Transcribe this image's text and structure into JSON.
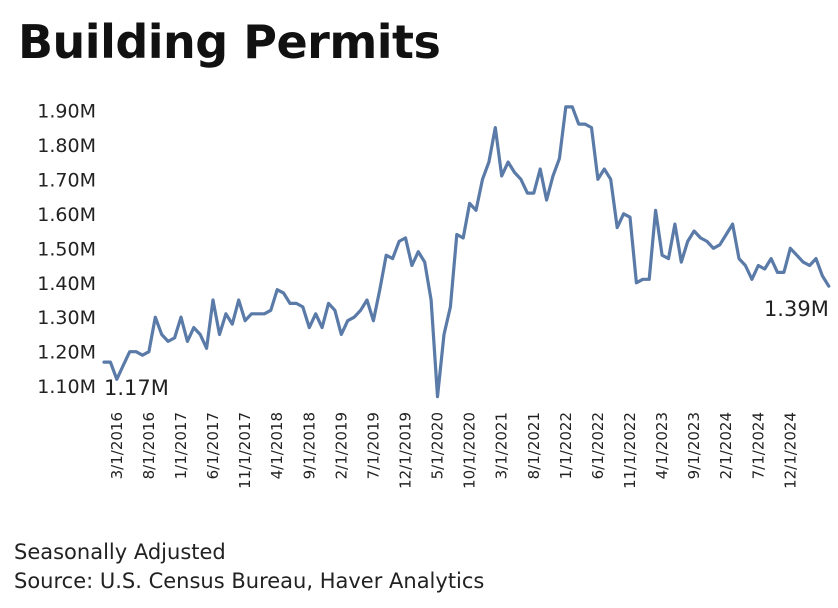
{
  "chart_data": {
    "type": "line",
    "title": "Building Permits",
    "series_color": "#5a7aa8",
    "y_ticks": [
      "1.10M",
      "1.20M",
      "1.30M",
      "1.40M",
      "1.50M",
      "1.60M",
      "1.70M",
      "1.80M",
      "1.90M"
    ],
    "y_tick_values": [
      1.1,
      1.2,
      1.3,
      1.4,
      1.5,
      1.6,
      1.7,
      1.8,
      1.9
    ],
    "ylim": [
      1.06,
      1.93
    ],
    "x_ticks": [
      "3/1/2016",
      "8/1/2016",
      "1/1/2017",
      "6/1/2017",
      "11/1/2017",
      "4/1/2018",
      "9/1/2018",
      "2/1/2019",
      "7/1/2019",
      "12/1/2019",
      "5/1/2020",
      "10/1/2020",
      "3/1/2021",
      "8/1/2021",
      "1/1/2022",
      "6/1/2022",
      "11/1/2022",
      "4/1/2023",
      "9/1/2023",
      "2/1/2024",
      "7/1/2024",
      "12/1/2024"
    ],
    "x_start": "1/1/2016",
    "x_end": "4/1/2025",
    "values": [
      1.17,
      1.17,
      1.12,
      1.16,
      1.2,
      1.2,
      1.19,
      1.2,
      1.3,
      1.25,
      1.23,
      1.24,
      1.3,
      1.23,
      1.27,
      1.25,
      1.21,
      1.35,
      1.25,
      1.31,
      1.28,
      1.35,
      1.29,
      1.31,
      1.31,
      1.31,
      1.32,
      1.38,
      1.37,
      1.34,
      1.34,
      1.33,
      1.27,
      1.31,
      1.27,
      1.34,
      1.32,
      1.25,
      1.29,
      1.3,
      1.32,
      1.35,
      1.29,
      1.38,
      1.48,
      1.47,
      1.52,
      1.53,
      1.45,
      1.49,
      1.46,
      1.35,
      1.07,
      1.25,
      1.33,
      1.54,
      1.53,
      1.63,
      1.61,
      1.7,
      1.75,
      1.85,
      1.71,
      1.75,
      1.72,
      1.7,
      1.66,
      1.66,
      1.73,
      1.64,
      1.71,
      1.76,
      1.91,
      1.91,
      1.86,
      1.86,
      1.85,
      1.7,
      1.73,
      1.7,
      1.56,
      1.6,
      1.59,
      1.4,
      1.41,
      1.41,
      1.61,
      1.48,
      1.47,
      1.57,
      1.46,
      1.52,
      1.55,
      1.53,
      1.52,
      1.5,
      1.51,
      1.54,
      1.57,
      1.47,
      1.45,
      1.41,
      1.45,
      1.44,
      1.47,
      1.43,
      1.43,
      1.5,
      1.48,
      1.46,
      1.45,
      1.47,
      1.42,
      1.39
    ],
    "first_label": "1.17M",
    "last_label": "1.39M"
  },
  "footer": {
    "note": "Seasonally Adjusted",
    "source": "Source: U.S. Census Bureau, Haver Analytics"
  }
}
